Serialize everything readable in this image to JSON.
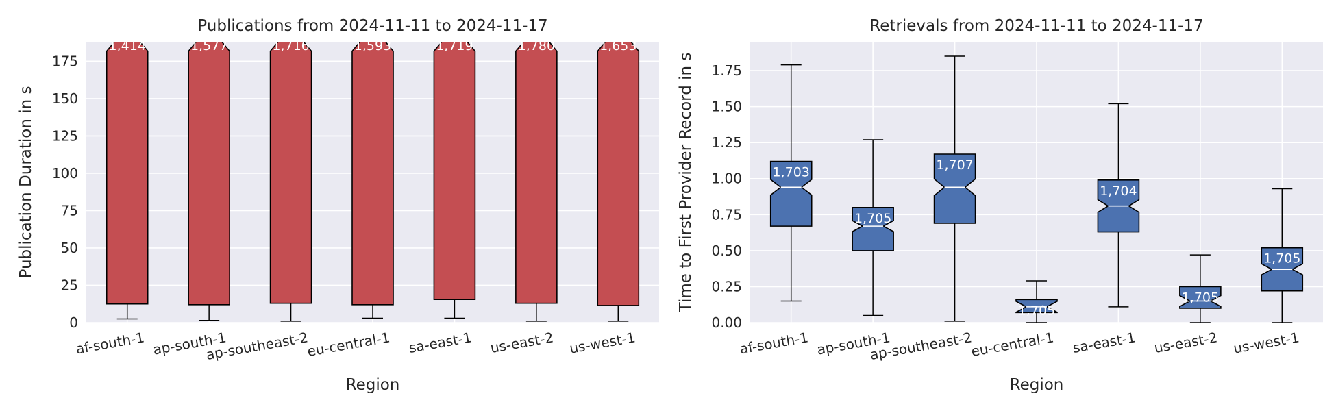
{
  "chart_data": [
    {
      "type": "boxplot",
      "title": "Publications from 2024-11-11 to 2024-11-17",
      "xlabel": "Region",
      "ylabel": "Publication Duration in s",
      "ylim": [
        0,
        188
      ],
      "yticks": [
        0,
        25,
        50,
        75,
        100,
        125,
        150,
        175
      ],
      "grid": true,
      "color": "#c44e52",
      "categories": [
        "af-south-1",
        "ap-south-1",
        "ap-southeast-2",
        "eu-central-1",
        "sa-east-1",
        "us-east-2",
        "us-west-1"
      ],
      "boxes": [
        {
          "whislo": 2.5,
          "q1": 12.5,
          "med": 190,
          "q3": 195,
          "whishi": 197,
          "count": "1,414"
        },
        {
          "whislo": 1.5,
          "q1": 12,
          "med": 190,
          "q3": 195,
          "whishi": 197,
          "count": "1,577"
        },
        {
          "whislo": 1,
          "q1": 13,
          "med": 190,
          "q3": 195,
          "whishi": 197,
          "count": "1,716"
        },
        {
          "whislo": 3,
          "q1": 12,
          "med": 190,
          "q3": 195,
          "whishi": 197,
          "count": "1,593"
        },
        {
          "whislo": 3,
          "q1": 15.5,
          "med": 190,
          "q3": 195,
          "whishi": 197,
          "count": "1,719"
        },
        {
          "whislo": 1,
          "q1": 13,
          "med": 190,
          "q3": 195,
          "whishi": 197,
          "count": "1,780"
        },
        {
          "whislo": 1,
          "q1": 11.5,
          "med": 190,
          "q3": 195,
          "whishi": 197,
          "count": "1,653"
        }
      ]
    },
    {
      "type": "boxplot",
      "title": "Retrievals from 2024-11-11 to 2024-11-17",
      "xlabel": "Region",
      "ylabel": "Time to First Provider Record in s",
      "ylim": [
        0,
        1.95
      ],
      "yticks": [
        0.0,
        0.25,
        0.5,
        0.75,
        1.0,
        1.25,
        1.5,
        1.75
      ],
      "grid": true,
      "color": "#4c72b0",
      "categories": [
        "af-south-1",
        "ap-south-1",
        "ap-southeast-2",
        "eu-central-1",
        "sa-east-1",
        "us-east-2",
        "us-west-1"
      ],
      "boxes": [
        {
          "whislo": 0.15,
          "q1": 0.67,
          "med": 0.94,
          "q3": 1.12,
          "whishi": 1.79,
          "count": "1,703"
        },
        {
          "whislo": 0.05,
          "q1": 0.5,
          "med": 0.67,
          "q3": 0.8,
          "whishi": 1.27,
          "count": "1,705"
        },
        {
          "whislo": 0.01,
          "q1": 0.69,
          "med": 0.94,
          "q3": 1.17,
          "whishi": 1.85,
          "count": "1,707"
        },
        {
          "whislo": 0.0,
          "q1": 0.07,
          "med": 0.11,
          "q3": 0.16,
          "whishi": 0.29,
          "count": "1,705"
        },
        {
          "whislo": 0.11,
          "q1": 0.63,
          "med": 0.81,
          "q3": 0.99,
          "whishi": 1.52,
          "count": "1,704"
        },
        {
          "whislo": 0.0,
          "q1": 0.1,
          "med": 0.15,
          "q3": 0.25,
          "whishi": 0.47,
          "count": "1,705"
        },
        {
          "whislo": 0.0,
          "q1": 0.22,
          "med": 0.37,
          "q3": 0.52,
          "whishi": 0.93,
          "count": "1,705"
        }
      ]
    }
  ]
}
